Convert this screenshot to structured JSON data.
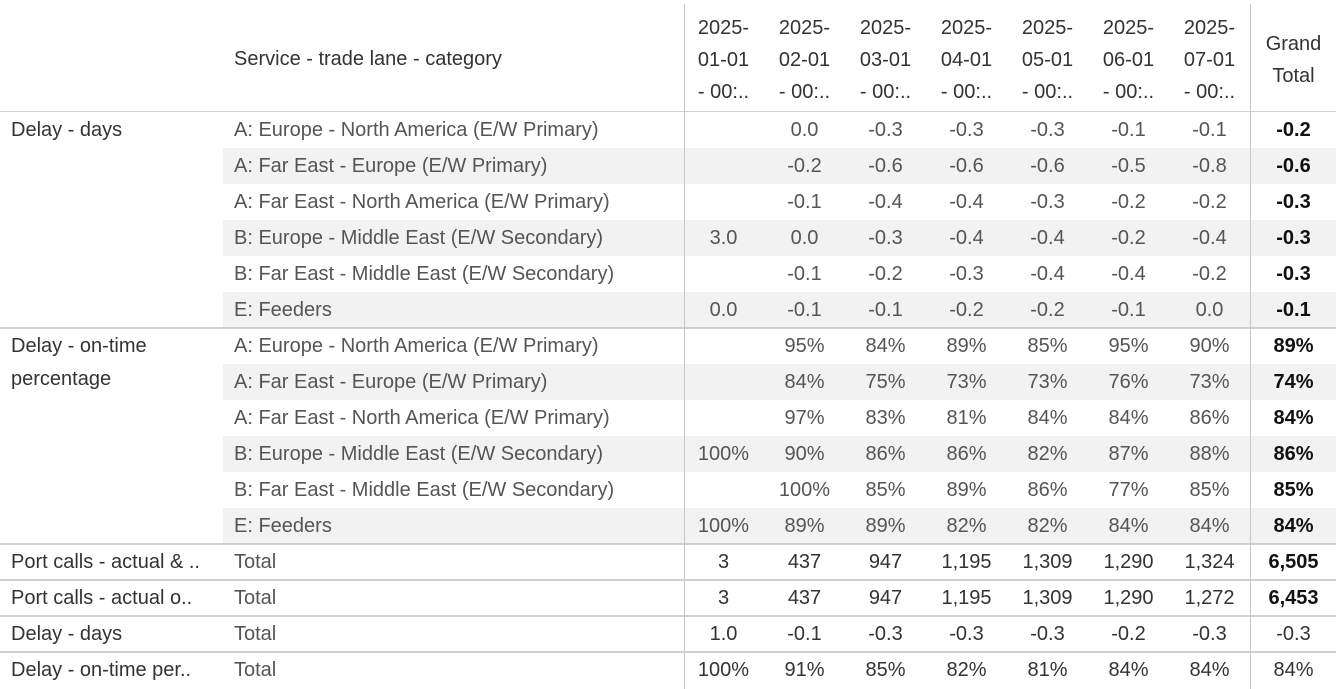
{
  "header": {
    "row_header_title": "Service - trade lane - category",
    "columns": [
      [
        "2025-",
        "01-01",
        "- 00:.."
      ],
      [
        "2025-",
        "02-01",
        "- 00:.."
      ],
      [
        "2025-",
        "03-01",
        "- 00:.."
      ],
      [
        "2025-",
        "04-01",
        "- 00:.."
      ],
      [
        "2025-",
        "05-01",
        "- 00:.."
      ],
      [
        "2025-",
        "06-01",
        "- 00:.."
      ],
      [
        "2025-",
        "07-01",
        "- 00:.."
      ]
    ],
    "grand_total": [
      "Grand",
      "Total"
    ]
  },
  "groups": [
    {
      "label": [
        "Delay - days"
      ],
      "rows": [
        {
          "sub": "A: Europe - North America (E/W Primary)",
          "values": [
            "",
            "0.0",
            "-0.3",
            "-0.3",
            "-0.3",
            "-0.1",
            "-0.1"
          ],
          "total": "-0.2"
        },
        {
          "sub": "A: Far East - Europe (E/W Primary)",
          "values": [
            "",
            "-0.2",
            "-0.6",
            "-0.6",
            "-0.6",
            "-0.5",
            "-0.8"
          ],
          "total": "-0.6"
        },
        {
          "sub": "A: Far East - North America (E/W Primary)",
          "values": [
            "",
            "-0.1",
            "-0.4",
            "-0.4",
            "-0.3",
            "-0.2",
            "-0.2"
          ],
          "total": "-0.3"
        },
        {
          "sub": "B: Europe - Middle East (E/W Secondary)",
          "values": [
            "3.0",
            "0.0",
            "-0.3",
            "-0.4",
            "-0.4",
            "-0.2",
            "-0.4"
          ],
          "total": "-0.3"
        },
        {
          "sub": "B: Far East - Middle East (E/W Secondary)",
          "values": [
            "",
            "-0.1",
            "-0.2",
            "-0.3",
            "-0.4",
            "-0.4",
            "-0.2"
          ],
          "total": "-0.3"
        },
        {
          "sub": "E: Feeders",
          "values": [
            "0.0",
            "-0.1",
            "-0.1",
            "-0.2",
            "-0.2",
            "-0.1",
            "0.0"
          ],
          "total": "-0.1"
        }
      ]
    },
    {
      "label": [
        "Delay - on-time",
        "percentage"
      ],
      "rows": [
        {
          "sub": "A: Europe - North America (E/W Primary)",
          "values": [
            "",
            "95%",
            "84%",
            "89%",
            "85%",
            "95%",
            "90%"
          ],
          "total": "89%"
        },
        {
          "sub": "A: Far East - Europe (E/W Primary)",
          "values": [
            "",
            "84%",
            "75%",
            "73%",
            "73%",
            "76%",
            "73%"
          ],
          "total": "74%"
        },
        {
          "sub": "A: Far East - North America (E/W Primary)",
          "values": [
            "",
            "97%",
            "83%",
            "81%",
            "84%",
            "84%",
            "86%"
          ],
          "total": "84%"
        },
        {
          "sub": "B: Europe - Middle East (E/W Secondary)",
          "values": [
            "100%",
            "90%",
            "86%",
            "86%",
            "82%",
            "87%",
            "88%"
          ],
          "total": "86%"
        },
        {
          "sub": "B: Far East - Middle East (E/W Secondary)",
          "values": [
            "",
            "100%",
            "85%",
            "89%",
            "86%",
            "77%",
            "85%"
          ],
          "total": "85%"
        },
        {
          "sub": "E: Feeders",
          "values": [
            "100%",
            "89%",
            "89%",
            "82%",
            "82%",
            "84%",
            "84%"
          ],
          "total": "84%"
        }
      ]
    }
  ],
  "totals": [
    {
      "label": "Port calls - actual & ..",
      "sub": "Total",
      "values": [
        "3",
        "437",
        "947",
        "1,195",
        "1,309",
        "1,290",
        "1,324"
      ],
      "total": "6,505"
    },
    {
      "label": "Port calls - actual o..",
      "sub": "Total",
      "values": [
        "3",
        "437",
        "947",
        "1,195",
        "1,309",
        "1,290",
        "1,272"
      ],
      "total": "6,453"
    },
    {
      "label": "Delay - days",
      "sub": "Total",
      "values": [
        "1.0",
        "-0.1",
        "-0.3",
        "-0.3",
        "-0.3",
        "-0.2",
        "-0.3"
      ],
      "total": "-0.3"
    },
    {
      "label": "Delay - on-time per..",
      "sub": "Total",
      "values": [
        "100%",
        "91%",
        "85%",
        "82%",
        "81%",
        "84%",
        "84%"
      ],
      "total": "84%"
    }
  ]
}
